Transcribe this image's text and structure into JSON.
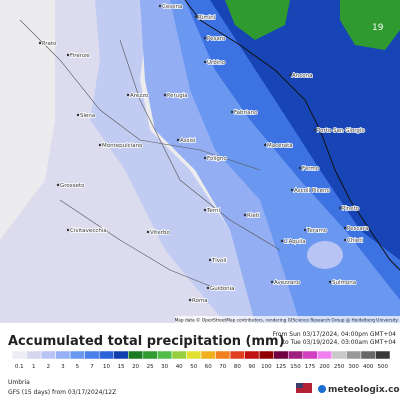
{
  "map": {
    "badge": "19",
    "attribution": "Map data © OpenStreetMap contributors, rendering GIScience Research Group @ Heidelberg University",
    "cities": [
      "Cesena",
      "Rimini",
      "Pesaro",
      "Urbino",
      "Ancona",
      "Prato",
      "Firenze",
      "Arezzo",
      "Perugia",
      "Fabriano",
      "Macerata",
      "Porto San Giorgio",
      "Siena",
      "Montepulciano",
      "Assisi",
      "Foligno",
      "Fermo",
      "Ascoli Piceno",
      "Grosseto",
      "Terni",
      "Teramo",
      "Pineto",
      "Pescara",
      "Chieti",
      "Viterbo",
      "Rieti",
      "L'Aquila",
      "Civitavecchia",
      "Tivoli",
      "Avezzano",
      "Sulmona",
      "Roma",
      "Guidonia"
    ]
  },
  "legend": {
    "title": "Accumulated total precipitation (mm)",
    "from": "From Sun 03/17/2024, 04:00pm GMT+04",
    "to": "to Tue 03/19/2024, 03:00am GMT+04",
    "ticks": [
      0.1,
      1,
      2,
      3,
      5,
      7,
      10,
      15,
      20,
      25,
      30,
      40,
      50,
      60,
      70,
      80,
      90,
      100,
      125,
      150,
      175,
      200,
      250,
      300,
      400,
      500
    ],
    "colors": [
      "#ececf4",
      "#d6d6ee",
      "#b8c4f4",
      "#95b0f4",
      "#6a98f0",
      "#4a7ee8",
      "#2a60d8",
      "#1040b0",
      "#1a7a20",
      "#2f9a30",
      "#4fbe4a",
      "#96d040",
      "#e2e030",
      "#f0b020",
      "#f08020",
      "#e04020",
      "#c01010",
      "#900000",
      "#700040",
      "#a02080",
      "#d040c0",
      "#f080f0",
      "#c8c8c8",
      "#989898",
      "#686868",
      "#383838"
    ]
  },
  "footer": {
    "region": "Umbria",
    "model": "GFS (15 days) from 03/17/2024/12Z",
    "brand": "meteologix.com"
  }
}
